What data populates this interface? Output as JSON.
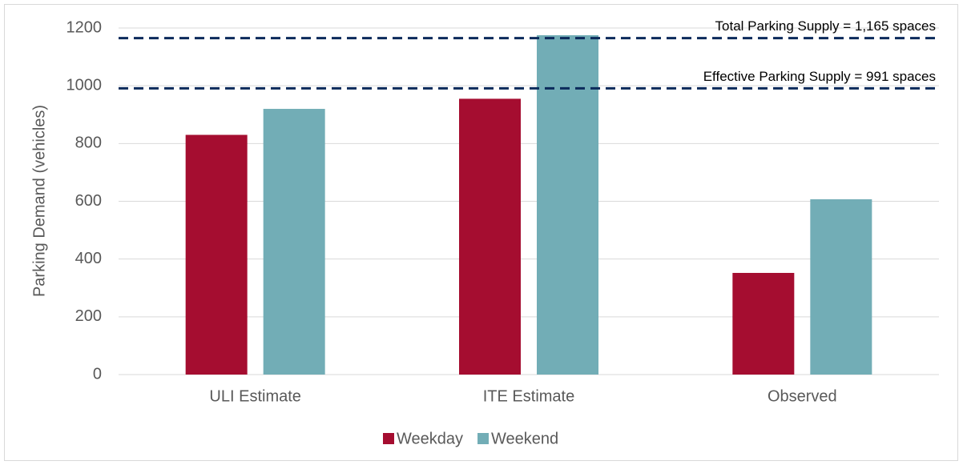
{
  "chart_data": {
    "type": "bar",
    "y_label": "Parking Demand (vehicles)",
    "categories": [
      "ULI Estimate",
      "ITE Estimate",
      "Observed"
    ],
    "series": [
      {
        "name": "Weekday",
        "color": "#a50d30",
        "values": [
          830,
          955,
          352
        ]
      },
      {
        "name": "Weekend",
        "color": "#72adb6",
        "values": [
          920,
          1175,
          607
        ]
      }
    ],
    "ylim": [
      0,
      1200
    ],
    "yticks": [
      0,
      200,
      400,
      600,
      800,
      1000,
      1200
    ],
    "grid": true,
    "reference_lines": [
      {
        "value": 1165,
        "label": "Total Parking Supply = 1,165 spaces",
        "color": "#0b2a5b"
      },
      {
        "value": 991,
        "label": "Effective Parking Supply = 991 spaces",
        "color": "#0b2a5b"
      }
    ],
    "legend": "bottom"
  }
}
